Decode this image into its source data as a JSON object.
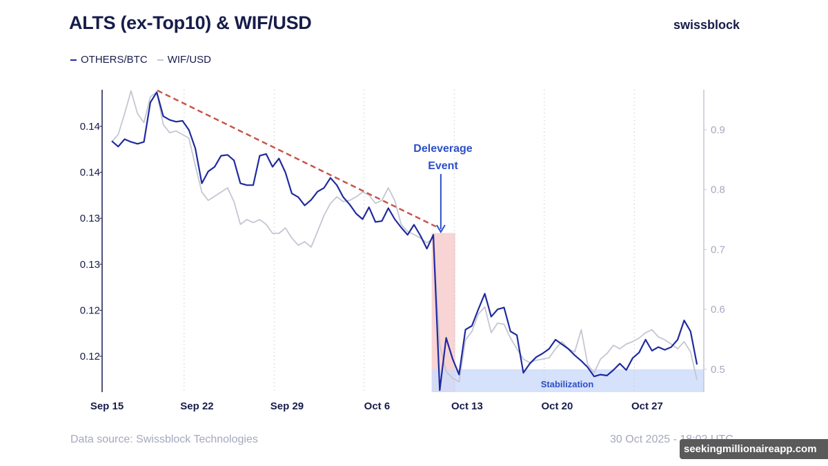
{
  "header": {
    "title": "ALTS (ex-Top10) & WIF/USD",
    "logo": "swissblock"
  },
  "legend": [
    {
      "label": "OTHERS/BTC",
      "color": "#1f2a9e"
    },
    {
      "label": "WIF/USD",
      "color": "#c4c6d2"
    }
  ],
  "footer": {
    "source": "Data source: Swissblock Technologies",
    "timestamp": "30 Oct 2025 - 18:02 UTC"
  },
  "watermark": "seekingmillionaireapp.com",
  "chart_data": {
    "type": "line",
    "title": "ALTS (ex-Top10) & WIF/USD",
    "x_start": "2025-09-15T09:00:00Z",
    "x_step_hours": 12,
    "x_ticks": [
      {
        "date": "2025-09-15",
        "label": "Sep 15"
      },
      {
        "date": "2025-09-22",
        "label": "Sep 22"
      },
      {
        "date": "2025-09-29",
        "label": "Sep 29"
      },
      {
        "date": "2025-10-06",
        "label": "Oct 6"
      },
      {
        "date": "2025-10-13",
        "label": "Oct 13"
      },
      {
        "date": "2025-10-20",
        "label": "Oct 20"
      },
      {
        "date": "2025-10-27",
        "label": "Oct 27"
      }
    ],
    "y_left": {
      "range": [
        0.1161,
        0.149
      ],
      "ticks": [
        {
          "value": 0.145,
          "label": "0.14"
        },
        {
          "value": 0.14,
          "label": "0.14"
        },
        {
          "value": 0.135,
          "label": "0.13"
        },
        {
          "value": 0.13,
          "label": "0.13"
        },
        {
          "value": 0.125,
          "label": "0.12"
        },
        {
          "value": 0.12,
          "label": "0.12"
        }
      ]
    },
    "y_right": {
      "range": [
        0.462,
        0.967
      ],
      "ticks": [
        {
          "value": 0.9,
          "label": "0.9"
        },
        {
          "value": 0.8,
          "label": "0.8"
        },
        {
          "value": 0.7,
          "label": "0.7"
        },
        {
          "value": 0.6,
          "label": "0.6"
        },
        {
          "value": 0.5,
          "label": "0.5"
        }
      ]
    },
    "grid": "vertical dotted",
    "legend_placement": "top-left",
    "series": [
      {
        "name": "OTHERS/BTC",
        "axis": "left",
        "color": "#1f2a9e",
        "values": [
          0.1434,
          0.1428,
          0.1436,
          0.1433,
          0.1431,
          0.1433,
          0.1476,
          0.1487,
          0.1461,
          0.1457,
          0.1455,
          0.1456,
          0.1446,
          0.1426,
          0.1388,
          0.1401,
          0.1406,
          0.1418,
          0.1419,
          0.1413,
          0.1388,
          0.1386,
          0.1386,
          0.1418,
          0.142,
          0.1406,
          0.1415,
          0.14,
          0.1377,
          0.1373,
          0.1364,
          0.137,
          0.1379,
          0.1383,
          0.1394,
          0.1386,
          0.1373,
          0.1365,
          0.1355,
          0.1349,
          0.1362,
          0.1346,
          0.1347,
          0.1361,
          0.1349,
          0.134,
          0.1332,
          0.1343,
          0.1331,
          0.1317,
          0.1332,
          0.1163,
          0.122,
          0.1197,
          0.118,
          0.1229,
          0.1233,
          0.1251,
          0.1268,
          0.1243,
          0.1251,
          0.1253,
          0.1227,
          0.1223,
          0.1182,
          0.1192,
          0.1199,
          0.1203,
          0.1208,
          0.1218,
          0.1213,
          0.1208,
          0.1201,
          0.1195,
          0.1188,
          0.1178,
          0.118,
          0.1179,
          0.1185,
          0.1192,
          0.1185,
          0.1198,
          0.1204,
          0.1218,
          0.1206,
          0.121,
          0.1207,
          0.121,
          0.1218,
          0.1239,
          0.1227,
          0.1191
        ]
      },
      {
        "name": "WIF/USD",
        "axis": "right",
        "color": "#c4c6d2",
        "values": [
          0.88,
          0.892,
          0.927,
          0.965,
          0.927,
          0.912,
          0.955,
          0.963,
          0.909,
          0.895,
          0.898,
          0.892,
          0.886,
          0.84,
          0.796,
          0.782,
          0.789,
          0.796,
          0.803,
          0.78,
          0.742,
          0.75,
          0.745,
          0.75,
          0.742,
          0.727,
          0.727,
          0.736,
          0.719,
          0.707,
          0.713,
          0.704,
          0.73,
          0.757,
          0.777,
          0.788,
          0.78,
          0.782,
          0.788,
          0.796,
          0.791,
          0.777,
          0.782,
          0.803,
          0.782,
          0.742,
          0.73,
          0.725,
          0.719,
          0.711,
          0.719,
          0.54,
          0.496,
          0.485,
          0.479,
          0.549,
          0.563,
          0.592,
          0.604,
          0.561,
          0.577,
          0.575,
          0.552,
          0.534,
          0.517,
          0.511,
          0.515,
          0.517,
          0.519,
          0.534,
          0.546,
          0.534,
          0.529,
          0.566,
          0.508,
          0.494,
          0.517,
          0.526,
          0.54,
          0.534,
          0.542,
          0.546,
          0.552,
          0.561,
          0.566,
          0.554,
          0.549,
          0.542,
          0.534,
          0.546,
          0.529,
          0.482
        ]
      }
    ],
    "trendline": {
      "color": "#c9544a",
      "style": "dashed",
      "axis": "left",
      "start": {
        "date": "2025-09-18T22:00:00Z",
        "value": 0.1489
      },
      "end": {
        "date": "2025-10-10T14:00:00Z",
        "value": 0.1341
      }
    },
    "annotations": [
      {
        "type": "shaded-region",
        "color": "#f8d4d4",
        "from": "2025-10-10T06:00:00Z",
        "to": "2025-10-12T02:00:00Z",
        "axis": "left",
        "top_value": 0.1334
      },
      {
        "type": "shaded-region",
        "label": "Stabilization",
        "color": "#cfdcfa",
        "text_color": "#2b4fc7",
        "from": "2025-10-10T06:00:00Z",
        "to": "2025-10-31T08:00:00Z",
        "axis": "right",
        "top_value": 0.5
      },
      {
        "type": "arrow",
        "label_lines": [
          "Deleverage",
          "Event"
        ],
        "color": "#2b4fc7",
        "date": "2025-10-10T23:00:00Z"
      }
    ]
  }
}
